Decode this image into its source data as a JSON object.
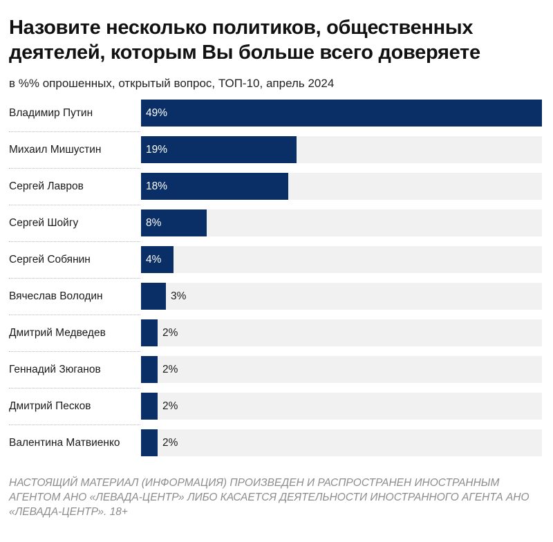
{
  "chart_data": {
    "type": "bar",
    "orientation": "horizontal",
    "title": "Назовите несколько политиков, общественных деятелей, которым Вы больше всего доверяете",
    "subtitle": "в %% опрошенных, открытый вопрос, ТОП-10, апрель 2024",
    "xlim": [
      0,
      49
    ],
    "grid": false,
    "legend": "none",
    "unit_suffix": "%",
    "categories": [
      "Владимир Путин",
      "Михаил Мишустин",
      "Сергей Лавров",
      "Сергей Шойгу",
      "Сергей Собянин",
      "Вячеслав Володин",
      "Дмитрий Медведев",
      "Геннадий Зюганов",
      "Дмитрий Песков",
      "Валентина Матвиенко"
    ],
    "values": [
      49,
      19,
      18,
      8,
      4,
      3,
      2,
      2,
      2,
      2
    ],
    "bar_color": "#0a2f66",
    "track_color": "#f1f1f1"
  },
  "footer": {
    "disclaimer": "НАСТОЯЩИЙ МАТЕРИАЛ (ИНФОРМАЦИЯ) ПРОИЗВЕДЕН И РАСПРОСТРАНЕН ИНОСТРАННЫМ АГЕНТОМ АНО «ЛЕВАДА-ЦЕНТР» ЛИБО КАСАЕТСЯ ДЕЯТЕЛЬНОСТИ ИНОСТРАННОГО АГЕНТА АНО «ЛЕВАДА-ЦЕНТР». 18+"
  }
}
